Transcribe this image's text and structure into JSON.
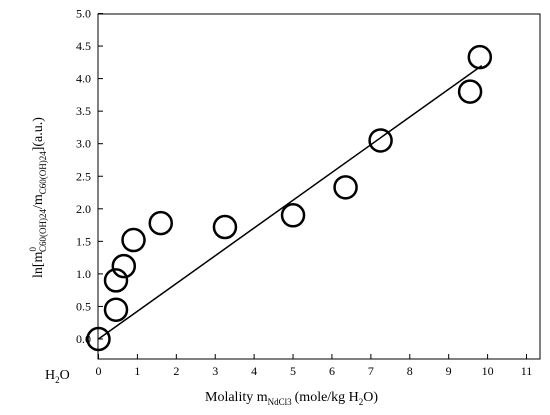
{
  "chart_data": {
    "type": "scatter",
    "xlabel_main": "Molality m",
    "xlabel_sub": "NdCl3",
    "xlabel_tail": "(mole/kg H",
    "xlabel_sub2": "2",
    "xlabel_end": "O)",
    "ylabel_main": "ln[m",
    "ylabel_sup": "0",
    "ylabel_sub1": "C60(OH)24",
    "ylabel_mid": "/m",
    "ylabel_sub2": "C60(OH)24",
    "ylabel_end": "](a.u.)",
    "origin_label_main": "H",
    "origin_label_sub": "2",
    "origin_label_end": "O",
    "xlim": [
      0,
      11
    ],
    "ylim": [
      0,
      5
    ],
    "x_ticks": [
      "0",
      "1",
      "2",
      "3",
      "4",
      "5",
      "6",
      "7",
      "8",
      "9",
      "10",
      "11"
    ],
    "y_ticks": [
      "0.0",
      "0.5",
      "1.0",
      "1.5",
      "2.0",
      "2.5",
      "3.0",
      "3.5",
      "4.0",
      "4.5",
      "5.0"
    ],
    "points": [
      {
        "x": 0.0,
        "y": 0.0
      },
      {
        "x": 0.45,
        "y": 0.45
      },
      {
        "x": 0.45,
        "y": 0.9
      },
      {
        "x": 0.65,
        "y": 1.12
      },
      {
        "x": 0.9,
        "y": 1.52
      },
      {
        "x": 1.6,
        "y": 1.78
      },
      {
        "x": 3.25,
        "y": 1.72
      },
      {
        "x": 5.0,
        "y": 1.9
      },
      {
        "x": 6.35,
        "y": 2.33
      },
      {
        "x": 7.25,
        "y": 3.05
      },
      {
        "x": 9.55,
        "y": 3.8
      },
      {
        "x": 9.8,
        "y": 4.33
      }
    ],
    "fit_line": {
      "x": [
        0.0,
        9.85
      ],
      "y": [
        0.0,
        4.2
      ]
    },
    "grid": false,
    "marker": "open-circle",
    "color": "#000000"
  }
}
